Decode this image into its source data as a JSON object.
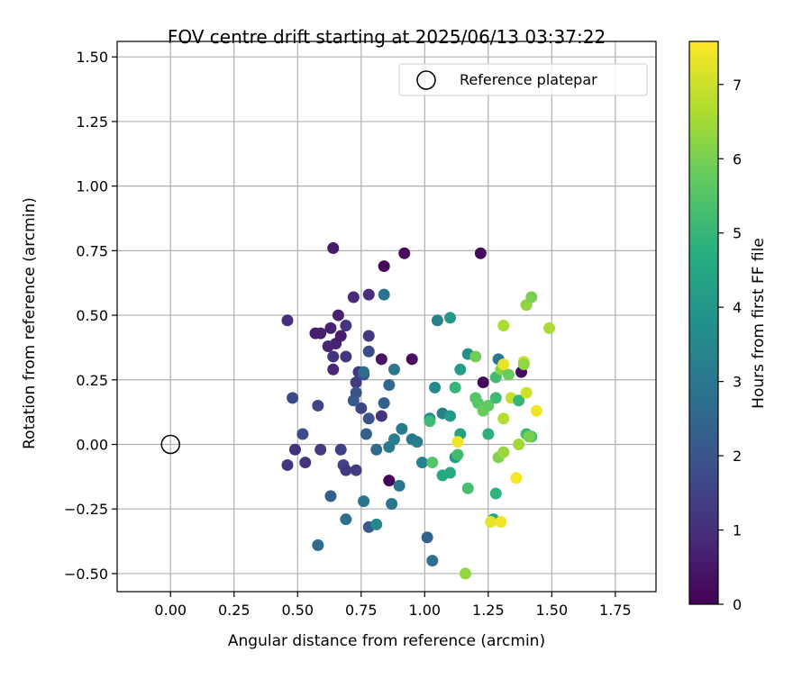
{
  "chart_data": {
    "type": "scatter",
    "title": "FOV centre drift starting at 2025/06/13 03:37:22",
    "xlabel": "Angular distance from reference (arcmin)",
    "ylabel": "Rotation from reference (arcmin)",
    "xlim": [
      -0.21,
      1.91
    ],
    "ylim": [
      -0.57,
      1.56
    ],
    "xticks": [
      "0.00",
      "0.25",
      "0.50",
      "0.75",
      "1.00",
      "1.25",
      "1.50",
      "1.75"
    ],
    "xtick_values": [
      0,
      0.25,
      0.5,
      0.75,
      1.0,
      1.25,
      1.5,
      1.75
    ],
    "yticks": [
      "−0.50",
      "−0.25",
      "0.00",
      "0.25",
      "0.50",
      "0.75",
      "1.00",
      "1.25",
      "1.50"
    ],
    "ytick_values": [
      -0.5,
      -0.25,
      0,
      0.25,
      0.5,
      0.75,
      1.0,
      1.25,
      1.5
    ],
    "grid": true,
    "legend": {
      "position": "top-right",
      "label": "Reference platepar",
      "marker": "open-circle"
    },
    "reference_point": {
      "x": 0.0,
      "y": 0.0
    },
    "colorbar": {
      "label": "Hours from first FF file",
      "colormap": "viridis",
      "range": [
        0,
        7.58
      ],
      "ticks": [
        "0",
        "1",
        "2",
        "3",
        "4",
        "5",
        "6",
        "7"
      ],
      "tick_values": [
        0,
        1,
        2,
        3,
        4,
        5,
        6,
        7
      ]
    },
    "points": [
      {
        "x": 0.86,
        "y": -0.14,
        "c": 0.05
      },
      {
        "x": 0.84,
        "y": 0.69,
        "c": 0.1
      },
      {
        "x": 0.92,
        "y": 0.74,
        "c": 0.2
      },
      {
        "x": 0.95,
        "y": 0.33,
        "c": 0.3
      },
      {
        "x": 1.22,
        "y": 0.74,
        "c": 0.2
      },
      {
        "x": 1.23,
        "y": 0.24,
        "c": 0.15
      },
      {
        "x": 1.38,
        "y": 0.28,
        "c": 0.25
      },
      {
        "x": 0.83,
        "y": 0.33,
        "c": 0.45
      },
      {
        "x": 0.64,
        "y": 0.76,
        "c": 0.55
      },
      {
        "x": 0.57,
        "y": 0.43,
        "c": 0.6
      },
      {
        "x": 0.59,
        "y": 0.43,
        "c": 0.65
      },
      {
        "x": 0.63,
        "y": 0.45,
        "c": 0.7
      },
      {
        "x": 0.65,
        "y": 0.39,
        "c": 0.75
      },
      {
        "x": 0.62,
        "y": 0.38,
        "c": 0.8
      },
      {
        "x": 0.66,
        "y": 0.5,
        "c": 0.7
      },
      {
        "x": 0.67,
        "y": 0.42,
        "c": 0.6
      },
      {
        "x": 0.64,
        "y": 0.29,
        "c": 0.85
      },
      {
        "x": 0.72,
        "y": 0.57,
        "c": 0.9
      },
      {
        "x": 0.46,
        "y": 0.48,
        "c": 1.0
      },
      {
        "x": 0.78,
        "y": 0.58,
        "c": 0.95
      },
      {
        "x": 0.64,
        "y": 0.34,
        "c": 1.1
      },
      {
        "x": 0.69,
        "y": 0.46,
        "c": 1.15
      },
      {
        "x": 0.69,
        "y": 0.34,
        "c": 1.2
      },
      {
        "x": 0.74,
        "y": 0.28,
        "c": 1.25
      },
      {
        "x": 0.73,
        "y": 0.24,
        "c": 1.3
      },
      {
        "x": 0.78,
        "y": 0.42,
        "c": 1.25
      },
      {
        "x": 0.49,
        "y": -0.02,
        "c": 1.05
      },
      {
        "x": 0.53,
        "y": -0.07,
        "c": 1.1
      },
      {
        "x": 0.46,
        "y": -0.08,
        "c": 1.2
      },
      {
        "x": 0.59,
        "y": -0.02,
        "c": 1.3
      },
      {
        "x": 0.67,
        "y": -0.02,
        "c": 1.4
      },
      {
        "x": 0.68,
        "y": -0.08,
        "c": 1.5
      },
      {
        "x": 0.69,
        "y": -0.1,
        "c": 1.25
      },
      {
        "x": 0.73,
        "y": -0.1,
        "c": 1.35
      },
      {
        "x": 0.58,
        "y": 0.15,
        "c": 1.55
      },
      {
        "x": 0.48,
        "y": 0.18,
        "c": 1.7
      },
      {
        "x": 0.52,
        "y": 0.04,
        "c": 1.8
      },
      {
        "x": 0.76,
        "y": 0.27,
        "c": 1.85
      },
      {
        "x": 0.73,
        "y": 0.2,
        "c": 1.9
      },
      {
        "x": 0.78,
        "y": 0.1,
        "c": 1.95
      },
      {
        "x": 0.83,
        "y": 0.11,
        "c": 1.15
      },
      {
        "x": 0.75,
        "y": 0.14,
        "c": 1.6
      },
      {
        "x": 0.72,
        "y": 0.17,
        "c": 2.1
      },
      {
        "x": 0.78,
        "y": 0.36,
        "c": 1.75
      },
      {
        "x": 0.77,
        "y": 0.04,
        "c": 2.3
      },
      {
        "x": 0.63,
        "y": -0.2,
        "c": 2.3
      },
      {
        "x": 0.58,
        "y": -0.39,
        "c": 2.6
      },
      {
        "x": 0.69,
        "y": -0.29,
        "c": 2.8
      },
      {
        "x": 0.76,
        "y": -0.22,
        "c": 2.9
      },
      {
        "x": 0.78,
        "y": -0.32,
        "c": 2.1
      },
      {
        "x": 0.81,
        "y": -0.31,
        "c": 3.5
      },
      {
        "x": 0.87,
        "y": -0.23,
        "c": 2.9
      },
      {
        "x": 0.9,
        "y": -0.16,
        "c": 3.0
      },
      {
        "x": 0.84,
        "y": 0.16,
        "c": 2.4
      },
      {
        "x": 0.86,
        "y": 0.23,
        "c": 2.55
      },
      {
        "x": 0.88,
        "y": 0.29,
        "c": 3.0
      },
      {
        "x": 0.84,
        "y": 0.58,
        "c": 2.85
      },
      {
        "x": 0.76,
        "y": 0.28,
        "c": 2.7
      },
      {
        "x": 0.81,
        "y": -0.02,
        "c": 2.6
      },
      {
        "x": 0.86,
        "y": -0.01,
        "c": 3.1
      },
      {
        "x": 0.88,
        "y": 0.02,
        "c": 3.2
      },
      {
        "x": 0.91,
        "y": 0.06,
        "c": 3.1
      },
      {
        "x": 0.95,
        "y": 0.02,
        "c": 3.0
      },
      {
        "x": 0.97,
        "y": 0.01,
        "c": 3.15
      },
      {
        "x": 0.99,
        "y": -0.07,
        "c": 3.35
      },
      {
        "x": 1.01,
        "y": -0.36,
        "c": 2.4
      },
      {
        "x": 1.03,
        "y": -0.45,
        "c": 2.8
      },
      {
        "x": 1.02,
        "y": 0.1,
        "c": 3.5
      },
      {
        "x": 1.04,
        "y": 0.22,
        "c": 3.5
      },
      {
        "x": 1.07,
        "y": 0.12,
        "c": 3.3
      },
      {
        "x": 1.05,
        "y": 0.48,
        "c": 3.3
      },
      {
        "x": 1.1,
        "y": 0.49,
        "c": 4.1
      },
      {
        "x": 1.1,
        "y": 0.11,
        "c": 4.1
      },
      {
        "x": 1.12,
        "y": -0.05,
        "c": 4.0
      },
      {
        "x": 1.14,
        "y": 0.29,
        "c": 4.2
      },
      {
        "x": 1.17,
        "y": 0.35,
        "c": 3.8
      },
      {
        "x": 1.14,
        "y": 0.04,
        "c": 4.3
      },
      {
        "x": 1.07,
        "y": -0.12,
        "c": 4.5
      },
      {
        "x": 1.1,
        "y": -0.11,
        "c": 4.6
      },
      {
        "x": 1.12,
        "y": 0.22,
        "c": 5.0
      },
      {
        "x": 1.13,
        "y": -0.04,
        "c": 5.2
      },
      {
        "x": 1.02,
        "y": 0.09,
        "c": 5.1
      },
      {
        "x": 1.03,
        "y": -0.07,
        "c": 5.5
      },
      {
        "x": 1.17,
        "y": -0.17,
        "c": 5.3
      },
      {
        "x": 1.2,
        "y": 0.18,
        "c": 5.5
      },
      {
        "x": 1.21,
        "y": 0.16,
        "c": 5.6
      },
      {
        "x": 1.2,
        "y": 0.34,
        "c": 5.9
      },
      {
        "x": 1.23,
        "y": 0.13,
        "c": 5.8
      },
      {
        "x": 1.25,
        "y": 0.15,
        "c": 5.7
      },
      {
        "x": 1.25,
        "y": 0.04,
        "c": 4.8
      },
      {
        "x": 1.28,
        "y": 0.18,
        "c": 5.1
      },
      {
        "x": 1.28,
        "y": 0.26,
        "c": 5.2
      },
      {
        "x": 1.29,
        "y": 0.33,
        "c": 3.0
      },
      {
        "x": 1.3,
        "y": 0.29,
        "c": 6.2
      },
      {
        "x": 1.27,
        "y": -0.29,
        "c": 4.5
      },
      {
        "x": 1.28,
        "y": -0.19,
        "c": 4.9
      },
      {
        "x": 1.29,
        "y": -0.05,
        "c": 6.1
      },
      {
        "x": 1.31,
        "y": -0.03,
        "c": 6.4
      },
      {
        "x": 1.31,
        "y": 0.1,
        "c": 6.7
      },
      {
        "x": 1.33,
        "y": 0.27,
        "c": 5.8
      },
      {
        "x": 1.34,
        "y": 0.18,
        "c": 6.9
      },
      {
        "x": 1.37,
        "y": 0.17,
        "c": 5.0
      },
      {
        "x": 1.37,
        "y": 0.0,
        "c": 6.5
      },
      {
        "x": 1.4,
        "y": 0.04,
        "c": 5.1
      },
      {
        "x": 1.42,
        "y": 0.03,
        "c": 5.3
      },
      {
        "x": 1.41,
        "y": 0.03,
        "c": 6.0
      },
      {
        "x": 1.4,
        "y": 0.2,
        "c": 7.0
      },
      {
        "x": 1.39,
        "y": 0.32,
        "c": 6.9
      },
      {
        "x": 1.39,
        "y": 0.31,
        "c": 6.3
      },
      {
        "x": 1.31,
        "y": 0.31,
        "c": 7.3
      },
      {
        "x": 1.31,
        "y": 0.46,
        "c": 6.6
      },
      {
        "x": 1.4,
        "y": 0.54,
        "c": 6.3
      },
      {
        "x": 1.42,
        "y": 0.57,
        "c": 6.0
      },
      {
        "x": 1.49,
        "y": 0.45,
        "c": 6.6
      },
      {
        "x": 1.44,
        "y": 0.13,
        "c": 7.4
      },
      {
        "x": 1.36,
        "y": -0.13,
        "c": 7.5
      },
      {
        "x": 1.26,
        "y": -0.3,
        "c": 7.3
      },
      {
        "x": 1.3,
        "y": -0.3,
        "c": 7.45
      },
      {
        "x": 1.13,
        "y": 0.01,
        "c": 7.4
      },
      {
        "x": 1.16,
        "y": -0.5,
        "c": 6.3
      }
    ]
  }
}
